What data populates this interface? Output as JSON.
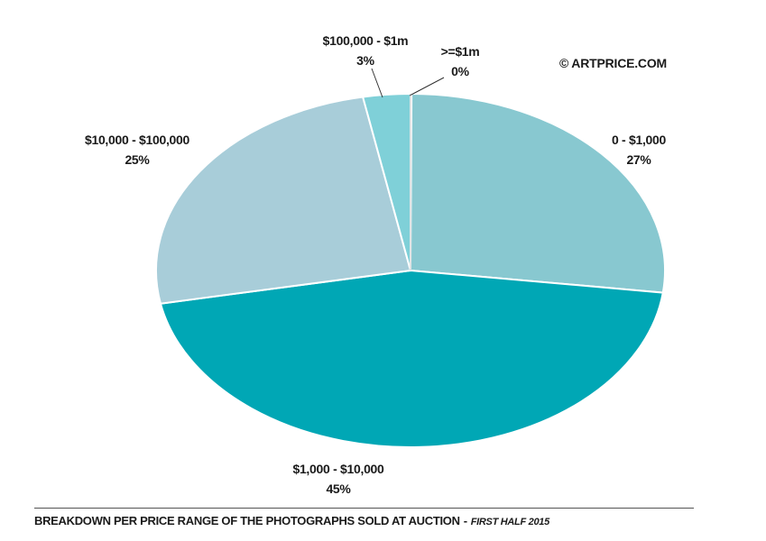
{
  "copyright": "© ARTPRICE.COM",
  "caption": {
    "main": "BREAKDOWN PER PRICE RANGE OF THE PHOTOGRAPHS SOLD AT AUCTION",
    "separator": "-",
    "period": "FIRST HALF 2015"
  },
  "chart_data": {
    "type": "pie",
    "title": "BREAKDOWN PER PRICE RANGE OF THE PHOTOGRAPHS SOLD AT AUCTION - FIRST HALF 2015",
    "slices": [
      {
        "label": "0 - $1,000",
        "value": 27,
        "value_label": "27%",
        "color": "#88c8d0"
      },
      {
        "label": "$1,000 - $10,000",
        "value": 45,
        "value_label": "45%",
        "color": "#00a7b5"
      },
      {
        "label": "$10,000 - $100,000",
        "value": 25,
        "value_label": "25%",
        "color": "#a8cdd9"
      },
      {
        "label": "$100,000 - $1m",
        "value": 3,
        "value_label": "3%",
        "color": "#7fd0d8"
      },
      {
        "label": ">=$1m",
        "value": 0,
        "value_label": "0%",
        "color": "#ffffff"
      }
    ],
    "start_angle": "12 o'clock",
    "direction": "clockwise",
    "legend": "none"
  }
}
